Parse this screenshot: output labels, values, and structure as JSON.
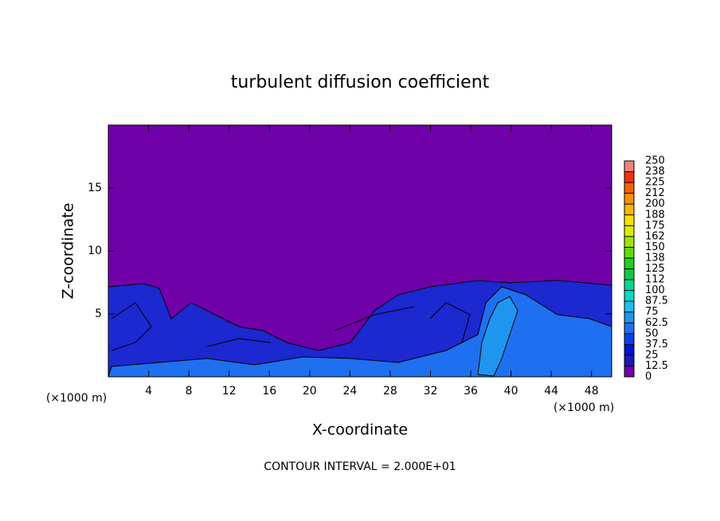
{
  "chart_data": {
    "type": "contour",
    "title": "turbulent diffusion coefficient",
    "xlabel": "X-coordinate",
    "ylabel": "Z-coordinate",
    "y_unit_label": "(×1000 m)",
    "x_unit_label": "(×1000 m)",
    "annotation": "CONTOUR INTERVAL = 2.000E+01",
    "xlim": [
      0,
      50
    ],
    "xticks": [
      4,
      8,
      12,
      16,
      20,
      24,
      28,
      32,
      36,
      40,
      44,
      48
    ],
    "ylim": [
      0,
      20
    ],
    "yticks": [
      5,
      10,
      15
    ],
    "colorbar": {
      "levels": [
        0,
        12.5,
        25,
        37.5,
        50,
        62.5,
        75,
        87.5,
        100,
        {
          "value": 112.5,
          "label": "112"
        },
        125,
        {
          "value": 137.5,
          "label": "138"
        },
        150,
        {
          "value": 162.5,
          "label": "162"
        },
        175,
        {
          "value": 187.5,
          "label": "188"
        },
        200,
        {
          "value": 212.5,
          "label": "212"
        },
        225,
        {
          "value": 237.5,
          "label": "238"
        },
        250
      ],
      "colors": [
        "#7000a8",
        "#1c1cb4",
        "#0010dc",
        "#0a40f0",
        "#1e6ef0",
        "#1e96f0",
        "#1ebef0",
        "#00dcc8",
        "#00d890",
        "#10c850",
        "#20d020",
        "#60dc00",
        "#a0e400",
        "#dcec00",
        "#f8e000",
        "#f8b800",
        "#f89000",
        "#f86000",
        "#f03010",
        "#f08080"
      ]
    }
  }
}
